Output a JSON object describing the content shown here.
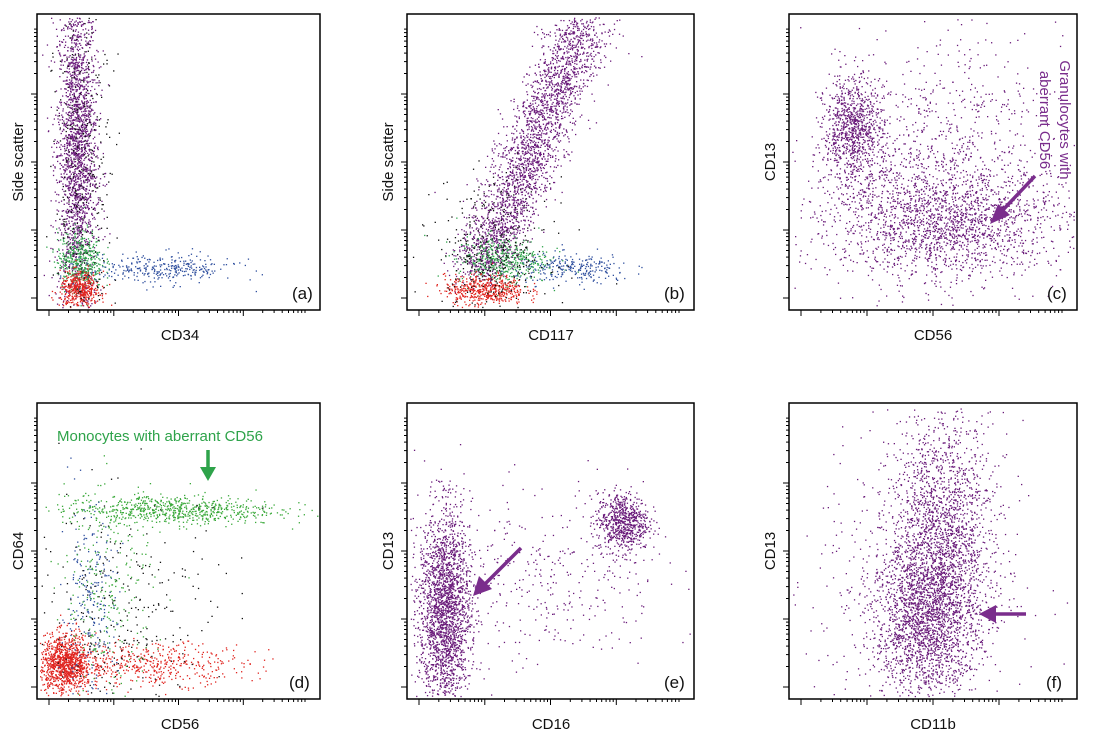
{
  "chart_data": [
    {
      "panel_label": "(a)",
      "type": "scatter",
      "xlabel": "CD34",
      "ylabel": "Side scatter",
      "x_scale": "log",
      "populations": [
        {
          "color": "#6a1b7a",
          "center": [
            0.14,
            0.54
          ],
          "spread": [
            0.035,
            0.28
          ],
          "n": 2200
        },
        {
          "color": "#2ea34a",
          "center": [
            0.15,
            0.17
          ],
          "spread": [
            0.04,
            0.05
          ],
          "n": 450
        },
        {
          "color": "#e0241f",
          "center": [
            0.15,
            0.07
          ],
          "spread": [
            0.035,
            0.03
          ],
          "n": 450
        },
        {
          "color": "#2f4f9e",
          "center": [
            0.44,
            0.14
          ],
          "spread": [
            0.13,
            0.025
          ],
          "n": 320
        },
        {
          "color": "#111111",
          "center": [
            0.16,
            0.45
          ],
          "spread": [
            0.05,
            0.3
          ],
          "n": 350
        }
      ],
      "annotation": null
    },
    {
      "panel_label": "(b)",
      "type": "scatter",
      "xlabel": "CD117",
      "ylabel": "Side scatter",
      "x_scale": "log",
      "populations": [
        {
          "color": "#6a1b7a",
          "diagonal": true,
          "from": [
            0.25,
            0.12
          ],
          "to": [
            0.62,
            0.98
          ],
          "spread": 0.055,
          "n": 2600
        },
        {
          "color": "#2ea34a",
          "center": [
            0.33,
            0.17
          ],
          "spread": [
            0.08,
            0.04
          ],
          "n": 450
        },
        {
          "color": "#e0241f",
          "center": [
            0.27,
            0.07
          ],
          "spread": [
            0.07,
            0.025
          ],
          "n": 500
        },
        {
          "color": "#2f4f9e",
          "center": [
            0.58,
            0.14
          ],
          "spread": [
            0.1,
            0.025
          ],
          "n": 250
        },
        {
          "color": "#111111",
          "center": [
            0.3,
            0.2
          ],
          "spread": [
            0.1,
            0.12
          ],
          "n": 350
        }
      ],
      "annotation": null
    },
    {
      "panel_label": "(c)",
      "type": "scatter",
      "xlabel": "CD56",
      "ylabel": "CD13",
      "x_scale": "log",
      "populations": [
        {
          "color": "#6a1b7a",
          "center": [
            0.22,
            0.61
          ],
          "spread": [
            0.05,
            0.09
          ],
          "n": 900
        },
        {
          "color": "#6a1b7a",
          "center": [
            0.55,
            0.3
          ],
          "spread": [
            0.2,
            0.09
          ],
          "n": 1500
        },
        {
          "color": "#6a1b7a",
          "center": [
            0.5,
            0.45
          ],
          "spread": [
            0.22,
            0.22
          ],
          "n": 1200
        }
      ],
      "annotation": {
        "text_lines": [
          "Granulocytes with",
          "aberrant CD56"
        ],
        "color": "#7a2d8c",
        "rotated": true
      }
    },
    {
      "panel_label": "(d)",
      "type": "scatter",
      "xlabel": "CD56",
      "ylabel": "CD64",
      "x_scale": "log",
      "populations": [
        {
          "color": "#3aa93a",
          "center": [
            0.47,
            0.64
          ],
          "spread": [
            0.19,
            0.025
          ],
          "n": 700
        },
        {
          "color": "#e0241f",
          "center": [
            0.1,
            0.12
          ],
          "spread": [
            0.045,
            0.05
          ],
          "n": 1100
        },
        {
          "color": "#e0241f",
          "center": [
            0.42,
            0.12
          ],
          "spread": [
            0.16,
            0.035
          ],
          "n": 450
        },
        {
          "color": "#2f4f9e",
          "center": [
            0.18,
            0.3
          ],
          "spread": [
            0.05,
            0.17
          ],
          "n": 250
        },
        {
          "color": "#111111",
          "center": [
            0.3,
            0.3
          ],
          "spread": [
            0.2,
            0.2
          ],
          "n": 300
        },
        {
          "color": "#3aa93a",
          "center": [
            0.25,
            0.35
          ],
          "spread": [
            0.08,
            0.18
          ],
          "n": 250
        }
      ],
      "annotation": {
        "text_lines": [
          "Monocytes with aberrant CD56"
        ],
        "color": "#2ea34a",
        "rotated": false
      }
    },
    {
      "panel_label": "(e)",
      "type": "scatter",
      "xlabel": "CD16",
      "ylabel": "CD13",
      "x_scale": "log",
      "populations": [
        {
          "color": "#6a1b7a",
          "center": [
            0.13,
            0.3
          ],
          "spread": [
            0.045,
            0.17
          ],
          "n": 2200
        },
        {
          "color": "#6a1b7a",
          "center": [
            0.75,
            0.6
          ],
          "spread": [
            0.045,
            0.05
          ],
          "n": 700
        },
        {
          "color": "#6a1b7a",
          "center": [
            0.45,
            0.4
          ],
          "spread": [
            0.22,
            0.15
          ],
          "n": 400
        }
      ],
      "annotation": null
    },
    {
      "panel_label": "(f)",
      "type": "scatter",
      "xlabel": "CD11b",
      "ylabel": "CD13",
      "x_scale": "log",
      "populations": [
        {
          "color": "#6a1b7a",
          "center": [
            0.53,
            0.55
          ],
          "spread": [
            0.09,
            0.2
          ],
          "n": 1800
        },
        {
          "color": "#6a1b7a",
          "center": [
            0.47,
            0.27
          ],
          "spread": [
            0.09,
            0.13
          ],
          "n": 1800
        },
        {
          "color": "#6a1b7a",
          "center": [
            0.45,
            0.4
          ],
          "spread": [
            0.18,
            0.27
          ],
          "n": 500
        }
      ],
      "annotation": null
    }
  ]
}
